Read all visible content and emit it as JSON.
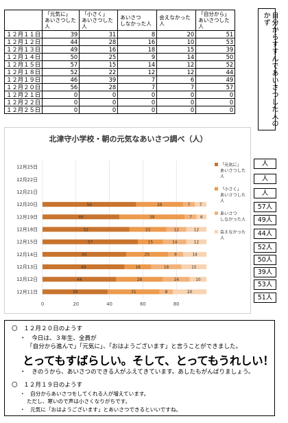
{
  "table": {
    "headers": [
      "",
      "「元気に」\nあいさつした人",
      "「小さく」\nあいさつした人",
      "あいさつ\nしなかった人",
      "会えなかった人",
      "「自分から」\nあいさつした人"
    ],
    "rows": [
      {
        "date": "１２月１１日",
        "values": [
          "39",
          "31",
          "8",
          "20",
          "51"
        ]
      },
      {
        "date": "１２月１２日",
        "values": [
          "44",
          "28",
          "16",
          "10",
          "53"
        ]
      },
      {
        "date": "１２月１３日",
        "values": [
          "49",
          "16",
          "18",
          "15",
          "39"
        ]
      },
      {
        "date": "１２月１４日",
        "values": [
          "50",
          "25",
          "9",
          "14",
          "50"
        ]
      },
      {
        "date": "１２月１５日",
        "values": [
          "57",
          "15",
          "14",
          "12",
          "52"
        ]
      },
      {
        "date": "１２月１８日",
        "values": [
          "52",
          "22",
          "12",
          "12",
          "44"
        ]
      },
      {
        "date": "１２月１９日",
        "values": [
          "46",
          "39",
          "7",
          "6",
          "49"
        ]
      },
      {
        "date": "１２月２０日",
        "values": [
          "56",
          "28",
          "7",
          "7",
          "57"
        ]
      },
      {
        "date": "１２月２１日",
        "values": [
          "0",
          "0",
          "0",
          "0",
          "0"
        ]
      },
      {
        "date": "１２月２２日",
        "values": [
          "0",
          "0",
          "0",
          "0",
          "0"
        ]
      },
      {
        "date": "１２月２５日",
        "values": [
          "0",
          "0",
          "0",
          "0",
          "0"
        ]
      }
    ]
  },
  "vertical_title": "自分からすすんであいさつした人のかず",
  "chart_data": {
    "type": "bar",
    "orientation": "horizontal",
    "stacked": true,
    "title": "北津守小学校・朝の元気なあいさつ調べ（人）",
    "categories": [
      "12月11日",
      "12月12日",
      "12月13日",
      "12月14日",
      "12月15日",
      "12月18日",
      "12月19日",
      "12月20日",
      "12月21日",
      "12月22日",
      "12月25日"
    ],
    "series": [
      {
        "name": "「元気に」あいさつした人",
        "legend_lines": [
          "「元気に」",
          "あいさつした",
          "人"
        ],
        "color": "#c8742e",
        "values": [
          39,
          44,
          49,
          50,
          57,
          52,
          46,
          56,
          0,
          0,
          0
        ]
      },
      {
        "name": "「小さく」あいさつした人",
        "legend_lines": [
          "「小さく」",
          "あいさつした",
          "人"
        ],
        "color": "#ec9a4c",
        "values": [
          31,
          28,
          16,
          25,
          15,
          22,
          39,
          28,
          0,
          0,
          0
        ]
      },
      {
        "name": "あいさつしなかった人",
        "legend_lines": [
          "あいさつ",
          "しなかった人"
        ],
        "color": "#f2b27a",
        "values": [
          8,
          16,
          18,
          9,
          14,
          12,
          7,
          7,
          0,
          0,
          0
        ]
      },
      {
        "name": "会えなかった人",
        "legend_lines": [
          "会えなかった",
          "人"
        ],
        "color": "#f8d3b1",
        "values": [
          20,
          10,
          15,
          14,
          12,
          12,
          6,
          7,
          0,
          0,
          0
        ]
      }
    ],
    "xticks": [
      "0",
      "20",
      "40",
      "60",
      "80"
    ],
    "xlim": [
      0,
      100
    ],
    "grid": true,
    "legend_position": "right"
  },
  "totals": [
    "人",
    "人",
    "人",
    "57人",
    "49人",
    "44人",
    "52人",
    "50人",
    "39人",
    "53人",
    "51人"
  ],
  "notes": {
    "n1_heading": "〇　１２月２０日のようす",
    "n1_line1": "・　今日は、３年生、全員が",
    "n1_line2": "「自分から進んで」「元気に」、「おはようございます」と言うことができました。",
    "headline": "とってもすばらしい。そして、とってもうれしい！",
    "n1_line3": "・　きのうから、あいさつのできる人がふえてきています。あしたもがんばりましょう。",
    "n2_heading": "〇　１２月１９日のようす",
    "n2_line1": "・　自分からあいさつをしてくれる人が増えています。",
    "n2_line2": "ただし、寒いので声は小さくなりがちです。",
    "n2_line3": "・　元気に「おはようございます」とあいさつできるといいですね。"
  }
}
